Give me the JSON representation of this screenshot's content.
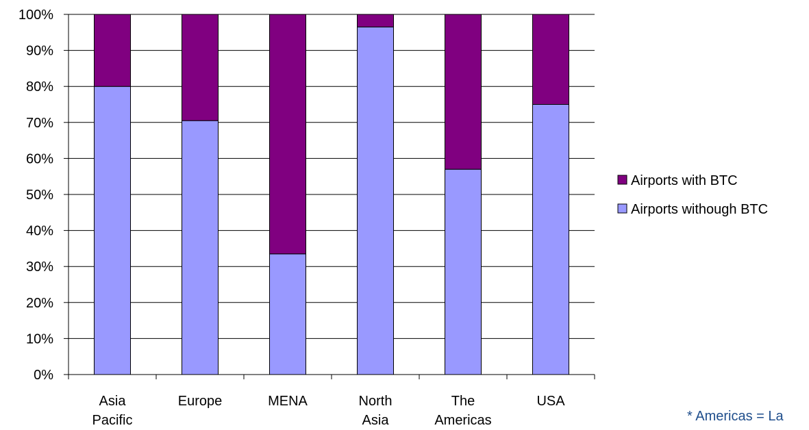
{
  "chart_data": {
    "type": "bar",
    "stacked": true,
    "normalized": true,
    "categories": [
      [
        "Asia",
        "Pacific"
      ],
      [
        "Europe"
      ],
      [
        "MENA"
      ],
      [
        "North",
        "Asia"
      ],
      [
        "The",
        "Americas"
      ],
      [
        "USA"
      ]
    ],
    "series": [
      {
        "name": "Airports withough BTC",
        "color": "#9999ff",
        "values": [
          80,
          70.5,
          33.5,
          96.5,
          57,
          75
        ]
      },
      {
        "name": "Airports with BTC",
        "color": "#800080",
        "values": [
          20,
          29.5,
          66.5,
          3.5,
          43,
          25
        ]
      }
    ],
    "ylim": [
      0,
      100
    ],
    "yticks": [
      "0%",
      "10%",
      "20%",
      "30%",
      "40%",
      "50%",
      "60%",
      "70%",
      "80%",
      "90%",
      "100%"
    ],
    "grid": true,
    "legend": {
      "position": "right",
      "entries": [
        "Airports with BTC",
        "Airports withough BTC"
      ]
    },
    "footnote": "* Americas = La"
  }
}
